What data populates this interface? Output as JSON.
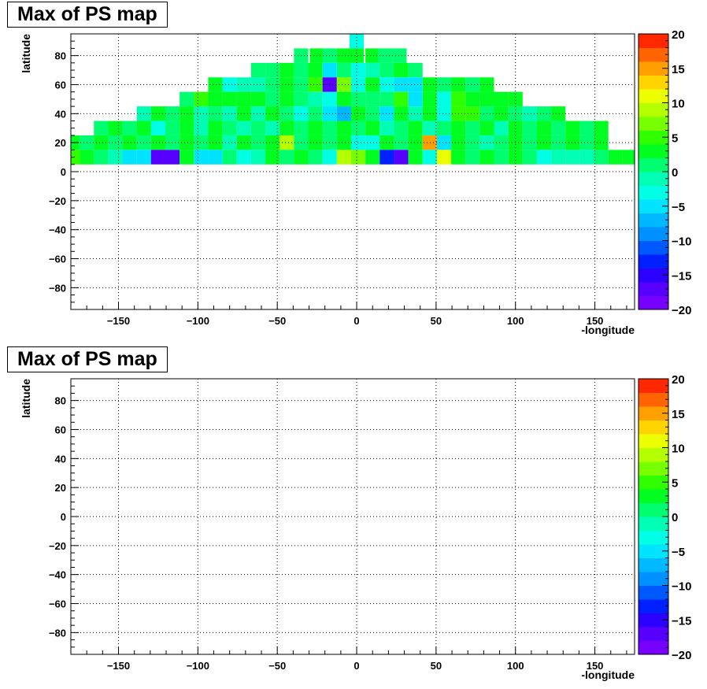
{
  "chart_data": [
    {
      "type": "heatmap",
      "title": "Max of PS map",
      "xlabel": "-longitude",
      "ylabel": "latitude",
      "xlim": [
        -180,
        175
      ],
      "ylim": [
        -95,
        95
      ],
      "xticks": [
        -150,
        -100,
        -50,
        0,
        50,
        100,
        150
      ],
      "yticks": [
        -80,
        -60,
        -40,
        -20,
        0,
        20,
        40,
        60,
        80
      ],
      "z_range": [
        -20,
        20
      ],
      "z_ticks": [
        -20,
        -15,
        -10,
        -5,
        0,
        5,
        10,
        15,
        20
      ],
      "grid": true,
      "bins": {
        "x_start": -180,
        "x_step": 9,
        "y_start": -95,
        "y_step": 10,
        "rows_top_to_bottom": [
          "....................-....................",
          "..............................",
          "..............................",
          "..............................",
          "..............................",
          "..............................",
          "..............................",
          "..............................",
          "..............................",
          "..............................",
          "..............................",
          "..............................",
          "..............................",
          "..............................",
          "..............................",
          "..............................",
          "..............................",
          "..............................",
          ".............................."
        ]
      },
      "cells": [
        {
          "lat": 90,
          "lon": 0,
          "z": -3
        },
        {
          "lat": 80,
          "lon": -35,
          "z": 1
        },
        {
          "lat": 80,
          "lon": -25,
          "z": 3
        },
        {
          "lat": 80,
          "lon": -17,
          "z": 1
        },
        {
          "lat": 80,
          "lon": -8,
          "z": 2
        },
        {
          "lat": 80,
          "lon": 0,
          "z": 2
        },
        {
          "lat": 80,
          "lon": 10,
          "z": 2
        },
        {
          "lat": 80,
          "lon": 18,
          "z": 1
        },
        {
          "lat": 80,
          "lon": 27,
          "z": 1
        },
        {
          "lat": 70,
          "lon": -62,
          "z": 1
        },
        {
          "lat": 70,
          "lon": -53,
          "z": 1
        },
        {
          "lat": 70,
          "lon": -44,
          "z": 2
        },
        {
          "lat": 70,
          "lon": -35,
          "z": 1
        },
        {
          "lat": 70,
          "lon": -26,
          "z": 3
        },
        {
          "lat": 70,
          "lon": -17,
          "z": -5
        },
        {
          "lat": 70,
          "lon": -8,
          "z": 1
        },
        {
          "lat": 70,
          "lon": 1,
          "z": -3
        },
        {
          "lat": 70,
          "lon": 10,
          "z": -2
        },
        {
          "lat": 70,
          "lon": 19,
          "z": 1
        },
        {
          "lat": 70,
          "lon": 28,
          "z": 2
        },
        {
          "lat": 70,
          "lon": 37,
          "z": 1
        },
        {
          "lat": 60,
          "lon": -89,
          "z": 2
        },
        {
          "lat": 60,
          "lon": -80,
          "z": -4
        },
        {
          "lat": 60,
          "lon": -71,
          "z": -2
        },
        {
          "lat": 60,
          "lon": -62,
          "z": -1
        },
        {
          "lat": 60,
          "lon": -53,
          "z": 1
        },
        {
          "lat": 60,
          "lon": -44,
          "z": 2
        },
        {
          "lat": 60,
          "lon": -35,
          "z": 0
        },
        {
          "lat": 60,
          "lon": -26,
          "z": 4
        },
        {
          "lat": 60,
          "lon": -17,
          "z": -18
        },
        {
          "lat": 60,
          "lon": -8,
          "z": 6
        },
        {
          "lat": 60,
          "lon": 1,
          "z": -4
        },
        {
          "lat": 60,
          "lon": 10,
          "z": 2
        },
        {
          "lat": 60,
          "lon": 19,
          "z": -3
        },
        {
          "lat": 60,
          "lon": 28,
          "z": -5
        },
        {
          "lat": 60,
          "lon": 37,
          "z": -6
        },
        {
          "lat": 60,
          "lon": 46,
          "z": 2
        },
        {
          "lat": 60,
          "lon": 55,
          "z": 1
        },
        {
          "lat": 60,
          "lon": 64,
          "z": 2
        },
        {
          "lat": 60,
          "lon": 73,
          "z": 1
        },
        {
          "lat": 60,
          "lon": 82,
          "z": 3
        },
        {
          "lat": 50,
          "lon": -107,
          "z": 1
        },
        {
          "lat": 50,
          "lon": -98,
          "z": 4
        },
        {
          "lat": 50,
          "lon": -89,
          "z": 3
        },
        {
          "lat": 50,
          "lon": -80,
          "z": 2
        },
        {
          "lat": 50,
          "lon": -71,
          "z": 2
        },
        {
          "lat": 50,
          "lon": -62,
          "z": 3
        },
        {
          "lat": 50,
          "lon": -53,
          "z": 1
        },
        {
          "lat": 50,
          "lon": -44,
          "z": 3
        },
        {
          "lat": 50,
          "lon": -35,
          "z": 1
        },
        {
          "lat": 50,
          "lon": -26,
          "z": -2
        },
        {
          "lat": 50,
          "lon": -17,
          "z": -4
        },
        {
          "lat": 50,
          "lon": -8,
          "z": 2
        },
        {
          "lat": 50,
          "lon": 1,
          "z": 1
        },
        {
          "lat": 50,
          "lon": 10,
          "z": 0
        },
        {
          "lat": 50,
          "lon": 19,
          "z": 1
        },
        {
          "lat": 50,
          "lon": 28,
          "z": 4
        },
        {
          "lat": 50,
          "lon": 37,
          "z": -5
        },
        {
          "lat": 50,
          "lon": 46,
          "z": 2
        },
        {
          "lat": 50,
          "lon": 55,
          "z": -3
        },
        {
          "lat": 50,
          "lon": 64,
          "z": 4
        },
        {
          "lat": 50,
          "lon": 73,
          "z": 3
        },
        {
          "lat": 50,
          "lon": 82,
          "z": 2
        },
        {
          "lat": 50,
          "lon": 91,
          "z": 3
        },
        {
          "lat": 50,
          "lon": 100,
          "z": 3
        },
        {
          "lat": 40,
          "lon": -134,
          "z": -1
        },
        {
          "lat": 40,
          "lon": -125,
          "z": 2
        },
        {
          "lat": 40,
          "lon": -116,
          "z": 1
        },
        {
          "lat": 40,
          "lon": -107,
          "z": 2
        },
        {
          "lat": 40,
          "lon": -98,
          "z": -1
        },
        {
          "lat": 40,
          "lon": -89,
          "z": 1
        },
        {
          "lat": 40,
          "lon": -80,
          "z": -2
        },
        {
          "lat": 40,
          "lon": -71,
          "z": 2
        },
        {
          "lat": 40,
          "lon": -62,
          "z": -1
        },
        {
          "lat": 40,
          "lon": -53,
          "z": 2
        },
        {
          "lat": 40,
          "lon": -44,
          "z": 1
        },
        {
          "lat": 40,
          "lon": -35,
          "z": -3
        },
        {
          "lat": 40,
          "lon": -26,
          "z": 1
        },
        {
          "lat": 40,
          "lon": -17,
          "z": -6
        },
        {
          "lat": 40,
          "lon": -8,
          "z": -7
        },
        {
          "lat": 40,
          "lon": 1,
          "z": 3
        },
        {
          "lat": 40,
          "lon": 10,
          "z": 0
        },
        {
          "lat": 40,
          "lon": 19,
          "z": -5
        },
        {
          "lat": 40,
          "lon": 28,
          "z": 2
        },
        {
          "lat": 40,
          "lon": 37,
          "z": -1
        },
        {
          "lat": 40,
          "lon": 46,
          "z": 2
        },
        {
          "lat": 40,
          "lon": 55,
          "z": -4
        },
        {
          "lat": 40,
          "lon": 64,
          "z": 4
        },
        {
          "lat": 40,
          "lon": 73,
          "z": 4
        },
        {
          "lat": 40,
          "lon": 82,
          "z": 1
        },
        {
          "lat": 40,
          "lon": 91,
          "z": 2
        },
        {
          "lat": 40,
          "lon": 100,
          "z": 1
        },
        {
          "lat": 40,
          "lon": 109,
          "z": -2
        },
        {
          "lat": 40,
          "lon": 118,
          "z": 1
        },
        {
          "lat": 40,
          "lon": 127,
          "z": 2
        },
        {
          "lat": 30,
          "lon": -161,
          "z": 1
        },
        {
          "lat": 30,
          "lon": -152,
          "z": 2
        },
        {
          "lat": 30,
          "lon": -143,
          "z": 1
        },
        {
          "lat": 30,
          "lon": -134,
          "z": 2
        },
        {
          "lat": 30,
          "lon": -125,
          "z": -3
        },
        {
          "lat": 30,
          "lon": -116,
          "z": 1
        },
        {
          "lat": 30,
          "lon": -107,
          "z": 2
        },
        {
          "lat": 30,
          "lon": -98,
          "z": -2
        },
        {
          "lat": 30,
          "lon": -89,
          "z": 2
        },
        {
          "lat": 30,
          "lon": -80,
          "z": 1
        },
        {
          "lat": 30,
          "lon": -71,
          "z": -2
        },
        {
          "lat": 30,
          "lon": -62,
          "z": 1
        },
        {
          "lat": 30,
          "lon": -53,
          "z": -1
        },
        {
          "lat": 30,
          "lon": -44,
          "z": 2
        },
        {
          "lat": 30,
          "lon": -35,
          "z": 1
        },
        {
          "lat": 30,
          "lon": -26,
          "z": 2
        },
        {
          "lat": 30,
          "lon": -17,
          "z": 1
        },
        {
          "lat": 30,
          "lon": -8,
          "z": 2
        },
        {
          "lat": 30,
          "lon": 1,
          "z": 1
        },
        {
          "lat": 30,
          "lon": 10,
          "z": 2
        },
        {
          "lat": 30,
          "lon": 19,
          "z": -2
        },
        {
          "lat": 30,
          "lon": 28,
          "z": 1
        },
        {
          "lat": 30,
          "lon": 37,
          "z": 2
        },
        {
          "lat": 30,
          "lon": 46,
          "z": -1
        },
        {
          "lat": 30,
          "lon": 55,
          "z": 1
        },
        {
          "lat": 30,
          "lon": 64,
          "z": 2
        },
        {
          "lat": 30,
          "lon": 73,
          "z": 1
        },
        {
          "lat": 30,
          "lon": 82,
          "z": 2
        },
        {
          "lat": 30,
          "lon": 91,
          "z": -1
        },
        {
          "lat": 30,
          "lon": 100,
          "z": 2
        },
        {
          "lat": 30,
          "lon": 109,
          "z": 1
        },
        {
          "lat": 30,
          "lon": 118,
          "z": 2
        },
        {
          "lat": 30,
          "lon": 127,
          "z": 1
        },
        {
          "lat": 30,
          "lon": 136,
          "z": 2
        },
        {
          "lat": 30,
          "lon": 145,
          "z": 1
        },
        {
          "lat": 30,
          "lon": 154,
          "z": 2
        },
        {
          "lat": 20,
          "lon": -179,
          "z": 2
        },
        {
          "lat": 20,
          "lon": -170,
          "z": 1
        },
        {
          "lat": 20,
          "lon": -161,
          "z": 2
        },
        {
          "lat": 20,
          "lon": -152,
          "z": 1
        },
        {
          "lat": 20,
          "lon": -143,
          "z": 2
        },
        {
          "lat": 20,
          "lon": -134,
          "z": 1
        },
        {
          "lat": 20,
          "lon": -125,
          "z": 2
        },
        {
          "lat": 20,
          "lon": -116,
          "z": 1
        },
        {
          "lat": 20,
          "lon": -107,
          "z": 2
        },
        {
          "lat": 20,
          "lon": -98,
          "z": 1
        },
        {
          "lat": 20,
          "lon": -89,
          "z": 2
        },
        {
          "lat": 20,
          "lon": -80,
          "z": -1
        },
        {
          "lat": 20,
          "lon": -71,
          "z": 2
        },
        {
          "lat": 20,
          "lon": -62,
          "z": 1
        },
        {
          "lat": 20,
          "lon": -53,
          "z": 2
        },
        {
          "lat": 20,
          "lon": -44,
          "z": 9
        },
        {
          "lat": 20,
          "lon": -35,
          "z": 1
        },
        {
          "lat": 20,
          "lon": -26,
          "z": 2
        },
        {
          "lat": 20,
          "lon": -17,
          "z": 1
        },
        {
          "lat": 20,
          "lon": -8,
          "z": 2
        },
        {
          "lat": 20,
          "lon": 1,
          "z": -4
        },
        {
          "lat": 20,
          "lon": 10,
          "z": -3
        },
        {
          "lat": 20,
          "lon": 19,
          "z": 2
        },
        {
          "lat": 20,
          "lon": 28,
          "z": 1
        },
        {
          "lat": 20,
          "lon": 37,
          "z": 2
        },
        {
          "lat": 20,
          "lon": 46,
          "z": 14
        },
        {
          "lat": 20,
          "lon": 55,
          "z": -5
        },
        {
          "lat": 20,
          "lon": 64,
          "z": 2
        },
        {
          "lat": 20,
          "lon": 73,
          "z": 1
        },
        {
          "lat": 20,
          "lon": 82,
          "z": -2
        },
        {
          "lat": 20,
          "lon": 91,
          "z": 1
        },
        {
          "lat": 20,
          "lon": 100,
          "z": 2
        },
        {
          "lat": 20,
          "lon": 109,
          "z": 1
        },
        {
          "lat": 20,
          "lon": 118,
          "z": 2
        },
        {
          "lat": 20,
          "lon": 127,
          "z": 1
        },
        {
          "lat": 20,
          "lon": 136,
          "z": 2
        },
        {
          "lat": 20,
          "lon": 145,
          "z": 1
        },
        {
          "lat": 20,
          "lon": 154,
          "z": 2
        },
        {
          "lat": 10,
          "lon": -179,
          "z": 4
        },
        {
          "lat": 10,
          "lon": -170,
          "z": 2
        },
        {
          "lat": 10,
          "lon": -161,
          "z": 1
        },
        {
          "lat": 10,
          "lon": -152,
          "z": -1
        },
        {
          "lat": 10,
          "lon": -143,
          "z": -5
        },
        {
          "lat": 10,
          "lon": -134,
          "z": -5
        },
        {
          "lat": 10,
          "lon": -125,
          "z": -18
        },
        {
          "lat": 10,
          "lon": -116,
          "z": -18
        },
        {
          "lat": 10,
          "lon": -107,
          "z": 2
        },
        {
          "lat": 10,
          "lon": -98,
          "z": -5
        },
        {
          "lat": 10,
          "lon": -89,
          "z": -5
        },
        {
          "lat": 10,
          "lon": -80,
          "z": 1
        },
        {
          "lat": 10,
          "lon": -71,
          "z": -4
        },
        {
          "lat": 10,
          "lon": -62,
          "z": -2
        },
        {
          "lat": 10,
          "lon": -53,
          "z": 2
        },
        {
          "lat": 10,
          "lon": -44,
          "z": 1
        },
        {
          "lat": 10,
          "lon": -35,
          "z": 2
        },
        {
          "lat": 10,
          "lon": -26,
          "z": 1
        },
        {
          "lat": 10,
          "lon": -17,
          "z": -4
        },
        {
          "lat": 10,
          "lon": -8,
          "z": 9
        },
        {
          "lat": 10,
          "lon": 1,
          "z": 7
        },
        {
          "lat": 10,
          "lon": 10,
          "z": 2
        },
        {
          "lat": 10,
          "lon": 19,
          "z": -14
        },
        {
          "lat": 10,
          "lon": 28,
          "z": -18
        },
        {
          "lat": 10,
          "lon": 37,
          "z": 2
        },
        {
          "lat": 10,
          "lon": 46,
          "z": -4
        },
        {
          "lat": 10,
          "lon": 55,
          "z": 11
        },
        {
          "lat": 10,
          "lon": 64,
          "z": 2
        },
        {
          "lat": 10,
          "lon": 73,
          "z": 1
        },
        {
          "lat": 10,
          "lon": 82,
          "z": 2
        },
        {
          "lat": 10,
          "lon": 91,
          "z": 1
        },
        {
          "lat": 10,
          "lon": 100,
          "z": 3
        },
        {
          "lat": 10,
          "lon": 109,
          "z": 1
        },
        {
          "lat": 10,
          "lon": 118,
          "z": -3
        },
        {
          "lat": 10,
          "lon": 127,
          "z": -2
        },
        {
          "lat": 10,
          "lon": 136,
          "z": -1
        },
        {
          "lat": 10,
          "lon": 145,
          "z": -2
        },
        {
          "lat": 10,
          "lon": 154,
          "z": 1
        },
        {
          "lat": 10,
          "lon": 163,
          "z": 3
        },
        {
          "lat": 10,
          "lon": 172,
          "z": 3
        }
      ]
    },
    {
      "type": "heatmap",
      "title": "Max of PS map",
      "xlabel": "-longitude",
      "ylabel": "latitude",
      "xlim": [
        -180,
        175
      ],
      "ylim": [
        -95,
        95
      ],
      "xticks": [
        -150,
        -100,
        -50,
        0,
        50,
        100,
        150
      ],
      "yticks": [
        -80,
        -60,
        -40,
        -20,
        0,
        20,
        40,
        60,
        80
      ],
      "z_range": [
        -20,
        20
      ],
      "z_ticks": [
        -20,
        -15,
        -10,
        -5,
        0,
        5,
        10,
        15,
        20
      ],
      "grid": true,
      "cells": []
    }
  ]
}
